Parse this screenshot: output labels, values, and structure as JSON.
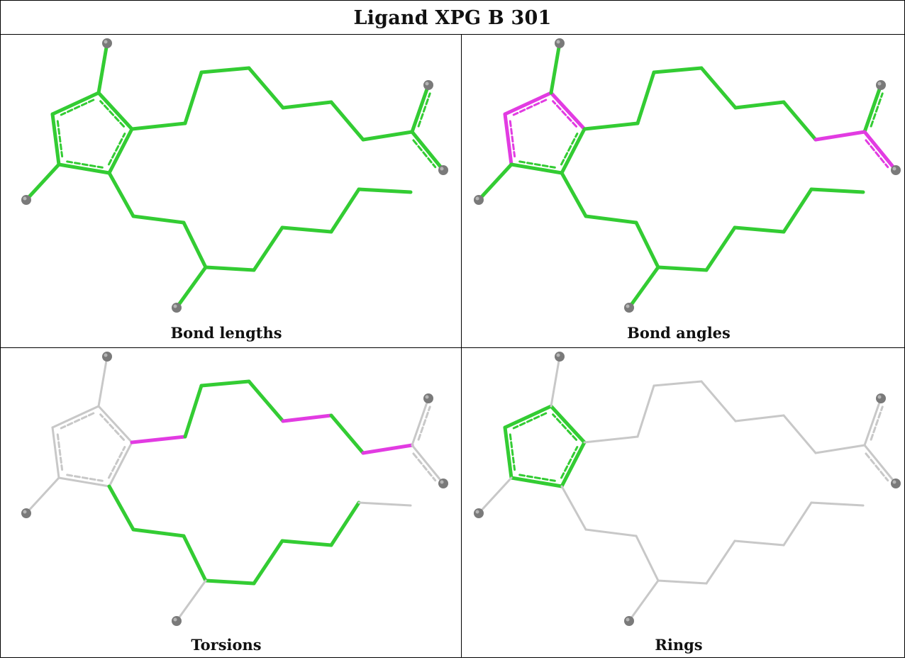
{
  "title": "Ligand XPG B 301",
  "panels": [
    {
      "caption": "Bond lengths",
      "highlight": "bond_lengths"
    },
    {
      "caption": "Bond angles",
      "highlight": "bond_angles"
    },
    {
      "caption": "Torsions",
      "highlight": "torsions"
    },
    {
      "caption": "Rings",
      "highlight": "rings"
    }
  ],
  "colors": {
    "ok": "#33cc33",
    "outlier": "#e23be2",
    "neutral": "#c8c8c8",
    "atom": "#7a7a7a",
    "border": "#000000"
  }
}
